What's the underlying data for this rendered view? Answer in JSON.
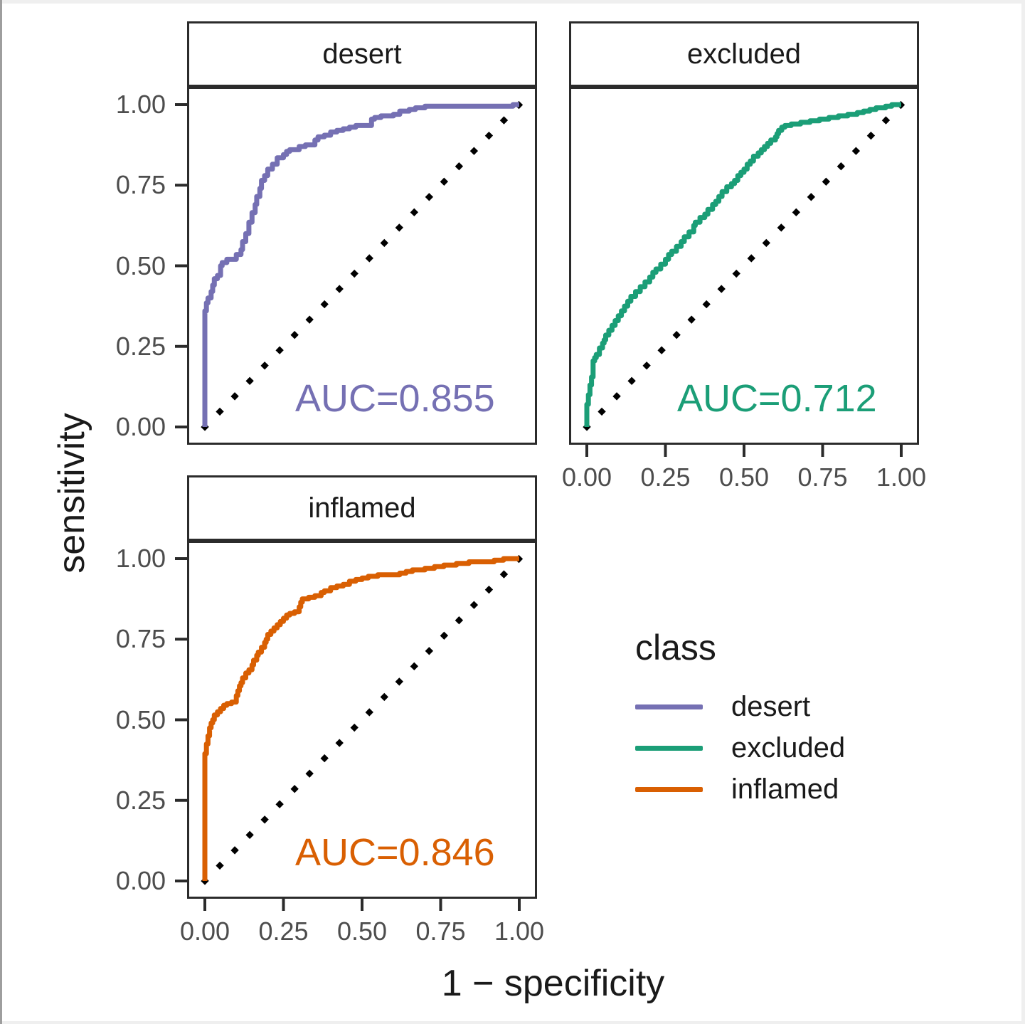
{
  "figure": {
    "background": "#ffffff",
    "panel_border_color": "#2b2b2b",
    "tick_mark_color": "#2b2b2b",
    "tick_label_color": "#4d4d4d",
    "x_axis_title": "1 − specificity",
    "y_axis_title": "sensitivity",
    "x_tick_labels": [
      "0.00",
      "0.25",
      "0.50",
      "0.75",
      "1.00"
    ],
    "y_tick_labels": [
      "1.00",
      "0.75",
      "0.50",
      "0.25",
      "0.00"
    ]
  },
  "legend": {
    "title": "class",
    "items": [
      {
        "label": "desert",
        "color": "#7570B3"
      },
      {
        "label": "excluded",
        "color": "#1B9E77"
      },
      {
        "label": "inflamed",
        "color": "#D95F02"
      }
    ]
  },
  "chart_data": {
    "type": "line",
    "title": "",
    "xlabel": "1 − specificity",
    "ylabel": "sensitivity",
    "xlim": [
      0,
      1
    ],
    "ylim": [
      0,
      1
    ],
    "x_ticks": [
      0,
      0.25,
      0.5,
      0.75,
      1.0
    ],
    "y_ticks": [
      0,
      0.25,
      0.5,
      0.75,
      1.0
    ],
    "grid": false,
    "legend_position": "right",
    "reference_line": {
      "style": "dotted",
      "color": "#000000",
      "from": [
        0,
        0
      ],
      "to": [
        1,
        1
      ]
    },
    "facets": [
      {
        "name": "desert",
        "auc": 0.855,
        "auc_label": "AUC=0.855",
        "color": "#7570B3",
        "roc_points": [
          [
            0,
            0
          ],
          [
            0,
            0.33
          ],
          [
            0.005,
            0.36
          ],
          [
            0.01,
            0.385
          ],
          [
            0.02,
            0.4
          ],
          [
            0.025,
            0.42
          ],
          [
            0.03,
            0.44
          ],
          [
            0.04,
            0.46
          ],
          [
            0.05,
            0.47
          ],
          [
            0.055,
            0.5
          ],
          [
            0.07,
            0.51
          ],
          [
            0.1,
            0.52
          ],
          [
            0.115,
            0.535
          ],
          [
            0.12,
            0.55
          ],
          [
            0.13,
            0.575
          ],
          [
            0.14,
            0.6
          ],
          [
            0.15,
            0.635
          ],
          [
            0.16,
            0.665
          ],
          [
            0.165,
            0.69
          ],
          [
            0.175,
            0.715
          ],
          [
            0.18,
            0.74
          ],
          [
            0.19,
            0.765
          ],
          [
            0.2,
            0.78
          ],
          [
            0.215,
            0.8
          ],
          [
            0.23,
            0.815
          ],
          [
            0.25,
            0.835
          ],
          [
            0.26,
            0.845
          ],
          [
            0.27,
            0.855
          ],
          [
            0.3,
            0.86
          ],
          [
            0.32,
            0.87
          ],
          [
            0.35,
            0.875
          ],
          [
            0.36,
            0.89
          ],
          [
            0.38,
            0.9
          ],
          [
            0.4,
            0.905
          ],
          [
            0.42,
            0.915
          ],
          [
            0.44,
            0.92
          ],
          [
            0.46,
            0.925
          ],
          [
            0.48,
            0.93
          ],
          [
            0.53,
            0.935
          ],
          [
            0.54,
            0.955
          ],
          [
            0.56,
            0.96
          ],
          [
            0.6,
            0.965
          ],
          [
            0.62,
            0.97
          ],
          [
            0.65,
            0.98
          ],
          [
            0.67,
            0.985
          ],
          [
            0.7,
            0.99
          ],
          [
            0.72,
            0.995
          ],
          [
            0.98,
            0.995
          ],
          [
            1,
            1
          ]
        ]
      },
      {
        "name": "excluded",
        "auc": 0.712,
        "auc_label": "AUC=0.712",
        "color": "#1B9E77",
        "roc_points": [
          [
            0,
            0
          ],
          [
            0,
            0.04
          ],
          [
            0.005,
            0.07
          ],
          [
            0.01,
            0.1
          ],
          [
            0.015,
            0.13
          ],
          [
            0.02,
            0.155
          ],
          [
            0.02,
            0.19
          ],
          [
            0.025,
            0.205
          ],
          [
            0.03,
            0.215
          ],
          [
            0.04,
            0.225
          ],
          [
            0.05,
            0.245
          ],
          [
            0.055,
            0.26
          ],
          [
            0.06,
            0.27
          ],
          [
            0.07,
            0.285
          ],
          [
            0.08,
            0.3
          ],
          [
            0.09,
            0.315
          ],
          [
            0.1,
            0.33
          ],
          [
            0.11,
            0.345
          ],
          [
            0.12,
            0.36
          ],
          [
            0.13,
            0.375
          ],
          [
            0.14,
            0.39
          ],
          [
            0.155,
            0.405
          ],
          [
            0.17,
            0.42
          ],
          [
            0.185,
            0.435
          ],
          [
            0.2,
            0.45
          ],
          [
            0.21,
            0.465
          ],
          [
            0.22,
            0.48
          ],
          [
            0.235,
            0.49
          ],
          [
            0.25,
            0.505
          ],
          [
            0.26,
            0.52
          ],
          [
            0.27,
            0.535
          ],
          [
            0.285,
            0.545
          ],
          [
            0.3,
            0.56
          ],
          [
            0.31,
            0.575
          ],
          [
            0.325,
            0.59
          ],
          [
            0.34,
            0.605
          ],
          [
            0.345,
            0.625
          ],
          [
            0.36,
            0.635
          ],
          [
            0.375,
            0.65
          ],
          [
            0.385,
            0.66
          ],
          [
            0.4,
            0.675
          ],
          [
            0.41,
            0.69
          ],
          [
            0.42,
            0.7
          ],
          [
            0.43,
            0.715
          ],
          [
            0.445,
            0.73
          ],
          [
            0.46,
            0.745
          ],
          [
            0.47,
            0.755
          ],
          [
            0.48,
            0.765
          ],
          [
            0.49,
            0.78
          ],
          [
            0.5,
            0.79
          ],
          [
            0.51,
            0.8
          ],
          [
            0.52,
            0.815
          ],
          [
            0.53,
            0.825
          ],
          [
            0.545,
            0.84
          ],
          [
            0.555,
            0.85
          ],
          [
            0.565,
            0.86
          ],
          [
            0.575,
            0.87
          ],
          [
            0.585,
            0.88
          ],
          [
            0.6,
            0.89
          ],
          [
            0.605,
            0.9
          ],
          [
            0.61,
            0.91
          ],
          [
            0.62,
            0.92
          ],
          [
            0.63,
            0.93
          ],
          [
            0.65,
            0.935
          ],
          [
            0.68,
            0.94
          ],
          [
            0.71,
            0.945
          ],
          [
            0.74,
            0.95
          ],
          [
            0.77,
            0.955
          ],
          [
            0.8,
            0.96
          ],
          [
            0.83,
            0.965
          ],
          [
            0.86,
            0.97
          ],
          [
            0.88,
            0.975
          ],
          [
            0.9,
            0.98
          ],
          [
            0.92,
            0.985
          ],
          [
            0.95,
            0.99
          ],
          [
            0.97,
            0.995
          ],
          [
            1,
            1
          ]
        ]
      },
      {
        "name": "inflamed",
        "auc": 0.846,
        "auc_label": "AUC=0.846",
        "color": "#D95F02",
        "roc_points": [
          [
            0,
            0
          ],
          [
            0,
            0.36
          ],
          [
            0.005,
            0.395
          ],
          [
            0.01,
            0.425
          ],
          [
            0.015,
            0.45
          ],
          [
            0.02,
            0.475
          ],
          [
            0.025,
            0.49
          ],
          [
            0.03,
            0.5
          ],
          [
            0.04,
            0.515
          ],
          [
            0.05,
            0.525
          ],
          [
            0.06,
            0.535
          ],
          [
            0.07,
            0.545
          ],
          [
            0.085,
            0.55
          ],
          [
            0.1,
            0.555
          ],
          [
            0.105,
            0.575
          ],
          [
            0.11,
            0.59
          ],
          [
            0.115,
            0.605
          ],
          [
            0.12,
            0.615
          ],
          [
            0.13,
            0.63
          ],
          [
            0.14,
            0.645
          ],
          [
            0.15,
            0.655
          ],
          [
            0.155,
            0.67
          ],
          [
            0.165,
            0.685
          ],
          [
            0.17,
            0.7
          ],
          [
            0.18,
            0.71
          ],
          [
            0.19,
            0.725
          ],
          [
            0.195,
            0.74
          ],
          [
            0.2,
            0.75
          ],
          [
            0.21,
            0.765
          ],
          [
            0.22,
            0.775
          ],
          [
            0.23,
            0.785
          ],
          [
            0.24,
            0.795
          ],
          [
            0.25,
            0.805
          ],
          [
            0.26,
            0.815
          ],
          [
            0.27,
            0.825
          ],
          [
            0.285,
            0.83
          ],
          [
            0.3,
            0.835
          ],
          [
            0.305,
            0.85
          ],
          [
            0.31,
            0.865
          ],
          [
            0.33,
            0.875
          ],
          [
            0.35,
            0.88
          ],
          [
            0.37,
            0.885
          ],
          [
            0.38,
            0.895
          ],
          [
            0.4,
            0.9
          ],
          [
            0.42,
            0.91
          ],
          [
            0.44,
            0.915
          ],
          [
            0.46,
            0.92
          ],
          [
            0.48,
            0.93
          ],
          [
            0.5,
            0.935
          ],
          [
            0.52,
            0.94
          ],
          [
            0.55,
            0.945
          ],
          [
            0.57,
            0.95
          ],
          [
            0.62,
            0.95
          ],
          [
            0.64,
            0.955
          ],
          [
            0.66,
            0.96
          ],
          [
            0.7,
            0.965
          ],
          [
            0.73,
            0.97
          ],
          [
            0.76,
            0.975
          ],
          [
            0.8,
            0.98
          ],
          [
            0.84,
            0.985
          ],
          [
            0.88,
            0.99
          ],
          [
            0.92,
            0.99
          ],
          [
            0.95,
            0.995
          ],
          [
            1,
            1
          ]
        ]
      }
    ]
  }
}
